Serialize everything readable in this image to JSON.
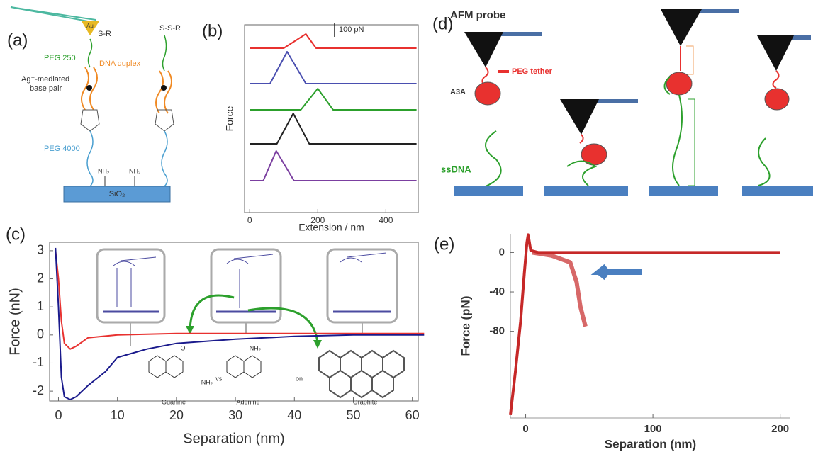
{
  "chart_data": [
    {
      "type": "line",
      "label": "(b)",
      "xlabel": "Extension / nm",
      "ylabel": "Force",
      "xlim": [
        -15,
        495
      ],
      "xticks": [
        0,
        200,
        400
      ],
      "scale_bar": {
        "value": 100,
        "label": "100 pN"
      },
      "series": [
        {
          "color": "#e8312f",
          "x": [
            0,
            100,
            165,
            195,
            490
          ],
          "values": [
            0,
            0,
            105,
            0,
            0
          ]
        },
        {
          "color": "#4a4fb0",
          "x": [
            0,
            60,
            110,
            165,
            490
          ],
          "values": [
            0,
            0,
            237,
            0,
            0
          ]
        },
        {
          "color": "#2ca02c",
          "x": [
            0,
            150,
            200,
            245,
            490
          ],
          "values": [
            0,
            0,
            158,
            0,
            0
          ]
        },
        {
          "color": "#222222",
          "x": [
            0,
            80,
            128,
            175,
            490
          ],
          "values": [
            0,
            0,
            226,
            0,
            0
          ]
        },
        {
          "color": "#7b3fa0",
          "x": [
            0,
            40,
            78,
            130,
            490
          ],
          "values": [
            0,
            0,
            221,
            0,
            0
          ]
        }
      ]
    },
    {
      "type": "line",
      "label": "(c)",
      "xlabel": "Separation (nm)",
      "ylabel": "Force (nN)",
      "xlim": [
        -1.5,
        61
      ],
      "xticks": [
        0,
        10,
        20,
        30,
        40,
        50,
        60
      ],
      "ylim": [
        -2.35,
        3.3
      ],
      "yticks": [
        -2,
        -1,
        0,
        1,
        2,
        3
      ],
      "insets": [
        "Guanine",
        "vs.",
        "Adenine",
        "on",
        "Graphite",
        "O",
        "NH₂",
        "NH₂"
      ],
      "series": [
        {
          "color": "#e8312f",
          "x": [
            -0.5,
            0,
            0.5,
            1,
            2,
            3,
            5,
            10,
            20,
            62
          ],
          "values": [
            3,
            2,
            0.5,
            -0.3,
            -0.5,
            -0.4,
            -0.1,
            0,
            0.05,
            0.05
          ]
        },
        {
          "color": "#1a1a8c",
          "x": [
            -0.5,
            0,
            0.5,
            1,
            2,
            3,
            5,
            8,
            10,
            15,
            20,
            30,
            40,
            50,
            62
          ],
          "values": [
            3.1,
            1,
            -1.5,
            -2.2,
            -2.3,
            -2.2,
            -1.8,
            -1.3,
            -0.8,
            -0.5,
            -0.3,
            -0.15,
            -0.05,
            0,
            0
          ]
        }
      ]
    },
    {
      "type": "line",
      "label": "(e)",
      "xlabel": "Separation (nm)",
      "ylabel": "Force (pN)",
      "xlim": [
        -12,
        208
      ],
      "xticks": [
        0,
        100,
        200
      ],
      "ylim": [
        -168,
        19
      ],
      "yticks": [
        0,
        -40,
        -80
      ],
      "series": [
        {
          "color": "#c62828",
          "x": [
            -12,
            -8,
            -4,
            -1,
            1,
            2,
            4,
            10,
            50,
            100,
            150,
            200
          ],
          "values": [
            -165,
            -120,
            -70,
            -20,
            10,
            18,
            2,
            0,
            0,
            0,
            0,
            0
          ]
        },
        {
          "color": "#c62828",
          "x": [
            5,
            20,
            35,
            40,
            43,
            47
          ],
          "values": [
            0,
            -3,
            -10,
            -30,
            -55,
            -75
          ]
        }
      ]
    }
  ],
  "diagrams": {
    "a": {
      "label": "(a)",
      "gold": "Au",
      "thiol": "S-R",
      "disulfide": "S-S-R",
      "peg_short": "PEG 250",
      "duplex": "DNA duplex",
      "ag_line1": "Ag⁺-mediated",
      "ag_line2": "base pair",
      "peg_long": "PEG 4000",
      "amine1": "NH₂",
      "amine2": "NH₂",
      "substrate": "SiO₂"
    },
    "d": {
      "label": "(d)",
      "probe": "AFM probe",
      "tether": "PEG tether",
      "protein": "A3A",
      "dna": "ssDNA"
    }
  }
}
